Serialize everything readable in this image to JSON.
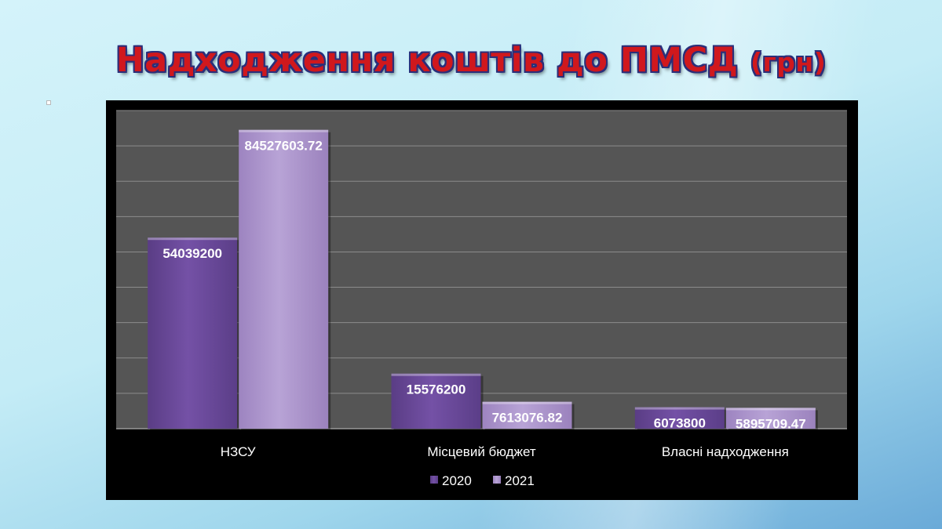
{
  "slide": {
    "title_main": "Надходження коштів до ПМСД",
    "title_unit": "(грн)"
  },
  "chart_data": {
    "type": "bar",
    "categories": [
      "НЗСУ",
      "Місцевий бюджет",
      "Власні надходження"
    ],
    "series": [
      {
        "name": "2020",
        "values": [
          54039200,
          15576200,
          6073800
        ],
        "color": "#6b4a9a"
      },
      {
        "name": "2021",
        "values": [
          84527603.72,
          7613076.82,
          5895709.47
        ],
        "color": "#ad96cc"
      }
    ],
    "data_labels": [
      [
        "54039200",
        "15576200",
        "6073800"
      ],
      [
        "84527603.72",
        "7613076.82",
        "5895709.47"
      ]
    ],
    "ylim": [
      0,
      90000000
    ],
    "y_tick_step": 10000000,
    "grid": true,
    "legend_position": "bottom",
    "plot_background": "#555555",
    "chart_background": "#000000",
    "text_color": "#ffffff",
    "gridline_color": "#8c8c8c"
  }
}
